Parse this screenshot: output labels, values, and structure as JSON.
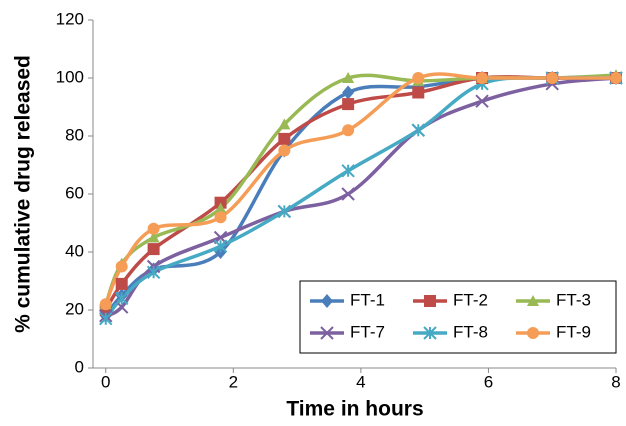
{
  "chart_data": {
    "type": "line",
    "x_label": "Time in hours",
    "y_label": "% cumulative drug released",
    "x": [
      0,
      0.25,
      0.75,
      1.8,
      2.8,
      3.8,
      4.9,
      5.9,
      7,
      8
    ],
    "xlim": [
      -0.2,
      8
    ],
    "xticks": [
      0,
      2,
      4,
      6,
      8
    ],
    "ylim": [
      0,
      120
    ],
    "yticks": [
      0,
      20,
      40,
      60,
      80,
      100,
      120
    ],
    "legend": "bottom-right",
    "series": [
      {
        "name": "FT-1",
        "color": "#4a7ebb",
        "marker": "diamond",
        "values": [
          18,
          25,
          34,
          40,
          75,
          95,
          97,
          100,
          100,
          100
        ]
      },
      {
        "name": "FT-2",
        "color": "#be4b48",
        "marker": "square",
        "values": [
          20,
          29,
          41,
          57,
          79,
          91,
          95,
          100,
          100,
          100
        ]
      },
      {
        "name": "FT-3",
        "color": "#98b954",
        "marker": "triangle",
        "values": [
          22,
          36,
          45,
          55,
          84,
          100,
          99,
          100,
          100,
          101
        ]
      },
      {
        "name": "FT-7",
        "color": "#7d60a0",
        "marker": "x",
        "values": [
          18,
          21,
          35,
          45,
          54,
          60,
          82,
          92,
          98,
          100
        ]
      },
      {
        "name": "FT-8",
        "color": "#46aac5",
        "marker": "star",
        "values": [
          17,
          24,
          33,
          42,
          54,
          68,
          82,
          98,
          100,
          100
        ]
      },
      {
        "name": "FT-9",
        "color": "#f59d56",
        "marker": "circle",
        "values": [
          22,
          35,
          48,
          52,
          75,
          82,
          100,
          100,
          100,
          100
        ]
      }
    ]
  }
}
